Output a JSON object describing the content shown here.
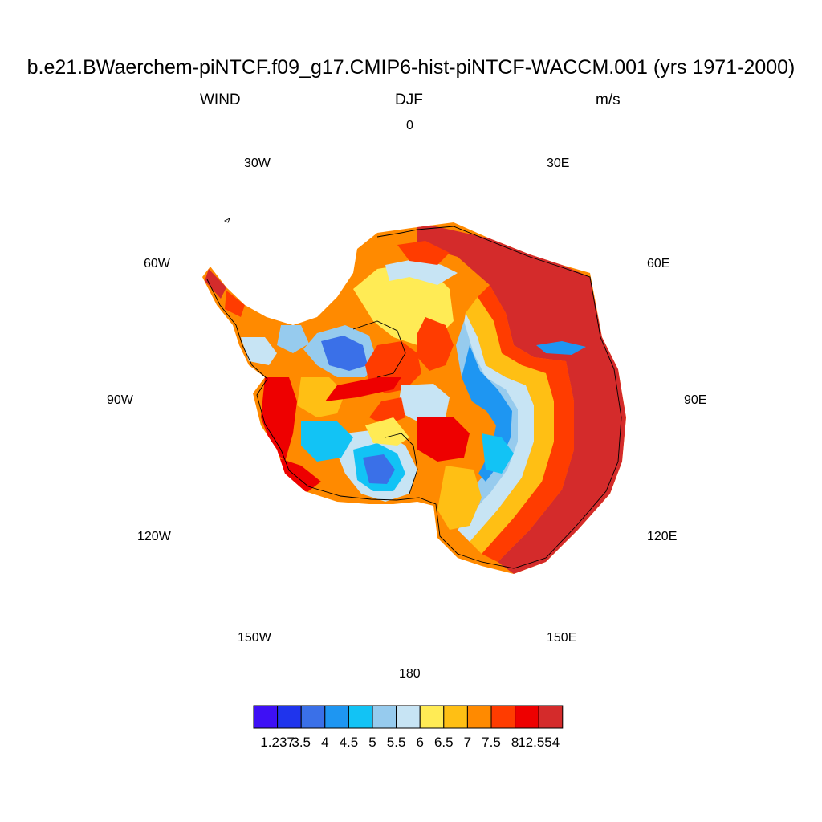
{
  "title": "b.e21.BWaerchem-piNTCF.f09_g17.CMIP6-hist-piNTCF-WACCM.001 (yrs 1971-2000)",
  "subtitles": {
    "left": "WIND",
    "center": "DJF",
    "right": "m/s"
  },
  "longitude_labels": [
    "0",
    "30E",
    "60E",
    "90E",
    "120E",
    "150E",
    "180",
    "150W",
    "120W",
    "90W",
    "60W",
    "30W"
  ],
  "colorbar": {
    "colors": [
      "#3e10f5",
      "#1f34ed",
      "#3a70e8",
      "#1e96f2",
      "#12c3f5",
      "#96cbee",
      "#c7e4f4",
      "#ffeb55",
      "#ffbf14",
      "#ff8a00",
      "#ff3c00",
      "#ee0000",
      "#d42b2b"
    ],
    "labels": [
      "1.237",
      "3.5",
      "4",
      "4.5",
      "5",
      "5.5",
      "6",
      "6.5",
      "7",
      "7.5",
      "8",
      "12.554"
    ]
  }
}
